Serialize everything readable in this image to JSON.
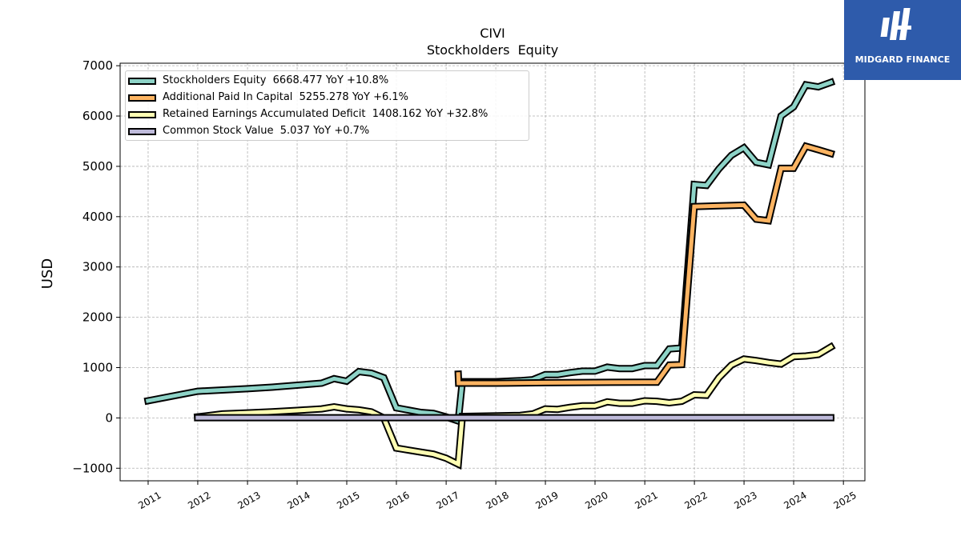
{
  "chart_data": {
    "type": "line",
    "title": "CIVI",
    "subtitle": "Stockholders  Equity",
    "ylabel": "USD",
    "xlabel": "",
    "ylim": [
      -1250,
      7050
    ],
    "xlim": [
      "2010-06-09",
      "2025-06-08"
    ],
    "x_ticks": [
      "2011",
      "2012",
      "2013",
      "2014",
      "2015",
      "2016",
      "2017",
      "2018",
      "2019",
      "2020",
      "2021",
      "2022",
      "2023",
      "2024",
      "2025"
    ],
    "y_ticks": [
      "−1000",
      "0",
      "1000",
      "2000",
      "3000",
      "4000",
      "5000",
      "6000",
      "7000"
    ],
    "grid": true,
    "legend_position": "top-left",
    "series": [
      {
        "name": "Stockholders Equity",
        "legend": "Stockholders Equity  6668.477 YoY +10.8%",
        "color": "#8dd3c7",
        "points": [
          [
            "2010-12-31",
            340
          ],
          [
            "2011-12-31",
            530
          ],
          [
            "2012-06-30",
            555
          ],
          [
            "2012-12-31",
            580
          ],
          [
            "2013-06-30",
            610
          ],
          [
            "2013-12-31",
            650
          ],
          [
            "2014-06-30",
            690
          ],
          [
            "2014-09-30",
            780
          ],
          [
            "2014-12-31",
            730
          ],
          [
            "2015-03-31",
            920
          ],
          [
            "2015-06-30",
            890
          ],
          [
            "2015-09-30",
            800
          ],
          [
            "2015-12-31",
            200
          ],
          [
            "2016-06-30",
            110
          ],
          [
            "2016-09-30",
            90
          ],
          [
            "2016-12-31",
            20
          ],
          [
            "2017-03-31",
            -60
          ],
          [
            "2017-04-30",
            720
          ],
          [
            "2017-12-31",
            720
          ],
          [
            "2018-06-30",
            740
          ],
          [
            "2018-09-30",
            760
          ],
          [
            "2018-12-31",
            860
          ],
          [
            "2019-03-31",
            860
          ],
          [
            "2019-06-30",
            900
          ],
          [
            "2019-09-30",
            930
          ],
          [
            "2019-12-31",
            930
          ],
          [
            "2020-03-31",
            1010
          ],
          [
            "2020-06-30",
            980
          ],
          [
            "2020-09-30",
            980
          ],
          [
            "2020-12-31",
            1040
          ],
          [
            "2021-03-31",
            1040
          ],
          [
            "2021-06-30",
            1370
          ],
          [
            "2021-09-30",
            1390
          ],
          [
            "2021-12-31",
            4640
          ],
          [
            "2022-03-31",
            4620
          ],
          [
            "2022-06-30",
            4950
          ],
          [
            "2022-09-30",
            5220
          ],
          [
            "2022-12-31",
            5370
          ],
          [
            "2023-03-31",
            5080
          ],
          [
            "2023-06-30",
            5030
          ],
          [
            "2023-09-30",
            6000
          ],
          [
            "2023-12-31",
            6180
          ],
          [
            "2024-03-31",
            6620
          ],
          [
            "2024-06-30",
            6580
          ],
          [
            "2024-09-30",
            6668
          ]
        ]
      },
      {
        "name": "Additional Paid In Capital",
        "legend": "Additional Paid In Capital  5255.278 YoY +6.1%",
        "color": "#fdb462",
        "points": [
          [
            "2017-03-31",
            870
          ],
          [
            "2017-04-03",
            690
          ],
          [
            "2017-12-31",
            690
          ],
          [
            "2018-12-31",
            700
          ],
          [
            "2019-12-31",
            705
          ],
          [
            "2020-12-31",
            710
          ],
          [
            "2021-03-31",
            710
          ],
          [
            "2021-06-30",
            1050
          ],
          [
            "2021-09-30",
            1060
          ],
          [
            "2021-12-31",
            4200
          ],
          [
            "2022-12-31",
            4230
          ],
          [
            "2023-03-31",
            3950
          ],
          [
            "2023-06-30",
            3920
          ],
          [
            "2023-09-30",
            4960
          ],
          [
            "2023-12-31",
            4960
          ],
          [
            "2024-03-31",
            5400
          ],
          [
            "2024-06-30",
            5330
          ],
          [
            "2024-09-30",
            5255
          ]
        ]
      },
      {
        "name": "Retained Earnings Accumulated Deficit",
        "legend": "Retained Earnings Accumulated Deficit  1408.162 YoY +32.8%",
        "color": "#ffffb3",
        "points": [
          [
            "2011-12-31",
            20
          ],
          [
            "2012-06-30",
            80
          ],
          [
            "2012-12-31",
            100
          ],
          [
            "2013-06-30",
            120
          ],
          [
            "2013-12-31",
            150
          ],
          [
            "2014-06-30",
            180
          ],
          [
            "2014-09-30",
            220
          ],
          [
            "2014-12-31",
            180
          ],
          [
            "2015-03-31",
            160
          ],
          [
            "2015-06-30",
            120
          ],
          [
            "2015-09-30",
            0
          ],
          [
            "2015-12-31",
            -600
          ],
          [
            "2016-06-30",
            -680
          ],
          [
            "2016-09-30",
            -720
          ],
          [
            "2016-12-31",
            -800
          ],
          [
            "2017-03-31",
            -920
          ],
          [
            "2017-04-30",
            30
          ],
          [
            "2018-06-30",
            50
          ],
          [
            "2018-09-30",
            80
          ],
          [
            "2018-12-31",
            180
          ],
          [
            "2019-03-31",
            170
          ],
          [
            "2019-06-30",
            210
          ],
          [
            "2019-09-30",
            240
          ],
          [
            "2019-12-31",
            240
          ],
          [
            "2020-03-31",
            320
          ],
          [
            "2020-06-30",
            290
          ],
          [
            "2020-09-30",
            290
          ],
          [
            "2020-12-31",
            340
          ],
          [
            "2021-03-31",
            330
          ],
          [
            "2021-06-30",
            300
          ],
          [
            "2021-09-30",
            330
          ],
          [
            "2021-12-31",
            460
          ],
          [
            "2022-03-31",
            450
          ],
          [
            "2022-06-30",
            800
          ],
          [
            "2022-09-30",
            1050
          ],
          [
            "2022-12-31",
            1170
          ],
          [
            "2023-03-31",
            1140
          ],
          [
            "2023-06-30",
            1100
          ],
          [
            "2023-09-30",
            1070
          ],
          [
            "2023-12-31",
            1220
          ],
          [
            "2024-03-31",
            1230
          ],
          [
            "2024-06-30",
            1260
          ],
          [
            "2024-09-30",
            1408
          ]
        ]
      },
      {
        "name": "Common Stock Value",
        "legend": "Common Stock Value  5.037 YoY +0.7%",
        "color": "#bebada",
        "points": [
          [
            "2011-12-31",
            5
          ],
          [
            "2024-09-30",
            5
          ]
        ]
      }
    ]
  },
  "brand": {
    "logo_text": "MIDGARD FINANCE",
    "logo_bg": "#2e5bab"
  }
}
